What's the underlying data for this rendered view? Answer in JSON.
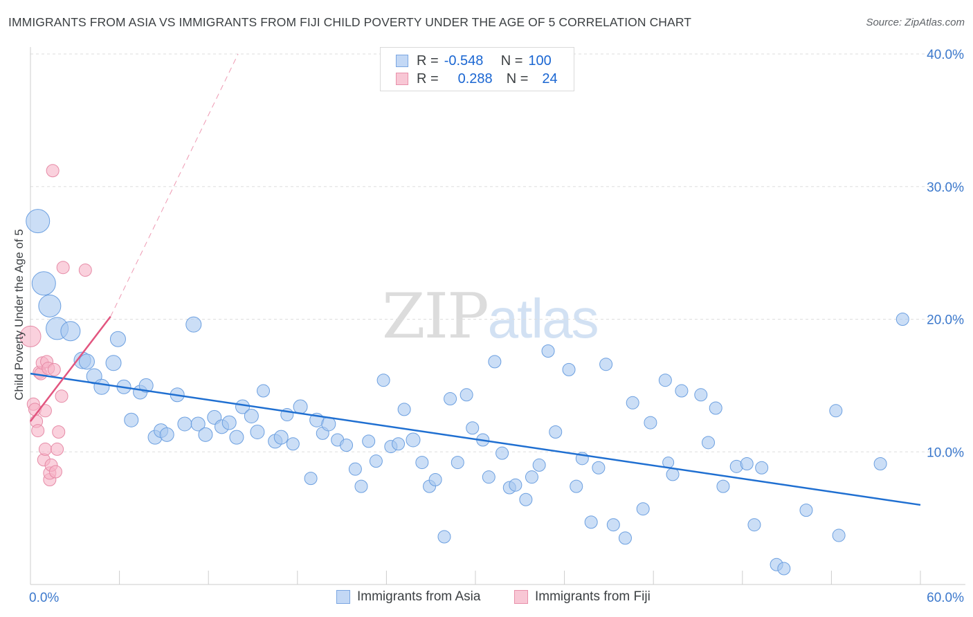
{
  "title": "IMMIGRANTS FROM ASIA VS IMMIGRANTS FROM FIJI CHILD POVERTY UNDER THE AGE OF 5 CORRELATION CHART",
  "source": "Source: ZipAtlas.com",
  "watermark": {
    "part1": "ZIP",
    "part2": "atlas"
  },
  "legend_top": {
    "rows": [
      {
        "r_label": "R =",
        "r_value": "-0.548",
        "n_label": "N =",
        "n_value": "100"
      },
      {
        "r_label": "R =",
        "r_value": "0.288",
        "n_label": "N =",
        "n_value": "24"
      }
    ]
  },
  "colors": {
    "asia_fill": "#a9c8f0",
    "asia_stroke": "#6b9fe0",
    "asia_line": "#1f6fd1",
    "fiji_fill": "#f6b3c7",
    "fiji_stroke": "#e68aa6",
    "fiji_line": "#e2557f",
    "tick_label": "#3b78cc",
    "grid": "#dddddd"
  },
  "chart_data": {
    "type": "scatter",
    "title": "IMMIGRANTS FROM ASIA VS IMMIGRANTS FROM FIJI CHILD POVERTY UNDER THE AGE OF 5 CORRELATION CHART",
    "xlabel": "",
    "ylabel": "Child Poverty Under the Age of 5",
    "xlim": [
      0,
      60
    ],
    "ylim": [
      0,
      40
    ],
    "x_tick_labels": [
      "0.0%",
      "60.0%"
    ],
    "y_ticks": [
      10,
      20,
      30,
      40
    ],
    "y_tick_labels": [
      "10.0%",
      "20.0%",
      "30.0%",
      "40.0%"
    ],
    "grid": true,
    "legend": "bottom",
    "series": [
      {
        "name": "Immigrants from Asia",
        "trend": {
          "x": [
            0,
            60
          ],
          "y": [
            15.9,
            6.0
          ]
        },
        "points": [
          {
            "x": 0.5,
            "y": 27.4,
            "s": 17
          },
          {
            "x": 0.9,
            "y": 22.7,
            "s": 17
          },
          {
            "x": 1.3,
            "y": 21.0,
            "s": 16
          },
          {
            "x": 1.8,
            "y": 19.3,
            "s": 16
          },
          {
            "x": 2.7,
            "y": 19.1,
            "s": 14
          },
          {
            "x": 3.5,
            "y": 16.9,
            "s": 12
          },
          {
            "x": 3.8,
            "y": 16.8,
            "s": 11
          },
          {
            "x": 4.3,
            "y": 15.7,
            "s": 11
          },
          {
            "x": 4.8,
            "y": 14.9,
            "s": 11
          },
          {
            "x": 5.6,
            "y": 16.7,
            "s": 11
          },
          {
            "x": 5.9,
            "y": 18.5,
            "s": 11
          },
          {
            "x": 6.3,
            "y": 14.9,
            "s": 10
          },
          {
            "x": 6.8,
            "y": 12.4,
            "s": 10
          },
          {
            "x": 7.4,
            "y": 14.5,
            "s": 10
          },
          {
            "x": 7.8,
            "y": 15.0,
            "s": 10
          },
          {
            "x": 8.4,
            "y": 11.1,
            "s": 10
          },
          {
            "x": 8.8,
            "y": 11.6,
            "s": 10
          },
          {
            "x": 9.2,
            "y": 11.3,
            "s": 10
          },
          {
            "x": 9.9,
            "y": 14.3,
            "s": 10
          },
          {
            "x": 10.4,
            "y": 12.1,
            "s": 10
          },
          {
            "x": 11.0,
            "y": 19.6,
            "s": 11
          },
          {
            "x": 11.3,
            "y": 12.1,
            "s": 10
          },
          {
            "x": 11.8,
            "y": 11.3,
            "s": 10
          },
          {
            "x": 12.4,
            "y": 12.6,
            "s": 10
          },
          {
            "x": 12.9,
            "y": 11.9,
            "s": 10
          },
          {
            "x": 13.4,
            "y": 12.2,
            "s": 10
          },
          {
            "x": 13.9,
            "y": 11.1,
            "s": 10
          },
          {
            "x": 14.3,
            "y": 13.4,
            "s": 10
          },
          {
            "x": 14.9,
            "y": 12.7,
            "s": 10
          },
          {
            "x": 15.3,
            "y": 11.5,
            "s": 10
          },
          {
            "x": 15.7,
            "y": 14.6,
            "s": 9
          },
          {
            "x": 16.5,
            "y": 10.8,
            "s": 10
          },
          {
            "x": 16.9,
            "y": 11.1,
            "s": 10
          },
          {
            "x": 17.3,
            "y": 12.8,
            "s": 9
          },
          {
            "x": 17.7,
            "y": 10.6,
            "s": 9
          },
          {
            "x": 18.2,
            "y": 13.4,
            "s": 10
          },
          {
            "x": 18.9,
            "y": 8.0,
            "s": 9
          },
          {
            "x": 19.3,
            "y": 12.4,
            "s": 10
          },
          {
            "x": 19.7,
            "y": 11.4,
            "s": 9
          },
          {
            "x": 20.1,
            "y": 12.1,
            "s": 10
          },
          {
            "x": 20.7,
            "y": 10.9,
            "s": 9
          },
          {
            "x": 21.3,
            "y": 10.5,
            "s": 9
          },
          {
            "x": 21.9,
            "y": 8.7,
            "s": 9
          },
          {
            "x": 22.3,
            "y": 7.4,
            "s": 9
          },
          {
            "x": 22.8,
            "y": 10.8,
            "s": 9
          },
          {
            "x": 23.3,
            "y": 9.3,
            "s": 9
          },
          {
            "x": 23.8,
            "y": 15.4,
            "s": 9
          },
          {
            "x": 24.3,
            "y": 10.4,
            "s": 9
          },
          {
            "x": 24.8,
            "y": 10.6,
            "s": 9
          },
          {
            "x": 25.2,
            "y": 13.2,
            "s": 9
          },
          {
            "x": 25.8,
            "y": 10.9,
            "s": 10
          },
          {
            "x": 26.4,
            "y": 9.2,
            "s": 9
          },
          {
            "x": 26.9,
            "y": 7.4,
            "s": 9
          },
          {
            "x": 27.3,
            "y": 7.9,
            "s": 9
          },
          {
            "x": 27.9,
            "y": 3.6,
            "s": 9
          },
          {
            "x": 28.3,
            "y": 14.0,
            "s": 9
          },
          {
            "x": 28.8,
            "y": 9.2,
            "s": 9
          },
          {
            "x": 29.4,
            "y": 14.3,
            "s": 9
          },
          {
            "x": 29.8,
            "y": 11.8,
            "s": 9
          },
          {
            "x": 30.5,
            "y": 10.9,
            "s": 9
          },
          {
            "x": 30.9,
            "y": 8.1,
            "s": 9
          },
          {
            "x": 31.3,
            "y": 16.8,
            "s": 9
          },
          {
            "x": 31.8,
            "y": 9.9,
            "s": 9
          },
          {
            "x": 32.3,
            "y": 7.3,
            "s": 9
          },
          {
            "x": 32.7,
            "y": 7.5,
            "s": 9
          },
          {
            "x": 33.4,
            "y": 6.4,
            "s": 9
          },
          {
            "x": 33.8,
            "y": 8.1,
            "s": 9
          },
          {
            "x": 34.3,
            "y": 9.0,
            "s": 9
          },
          {
            "x": 34.9,
            "y": 17.6,
            "s": 9
          },
          {
            "x": 35.4,
            "y": 11.5,
            "s": 9
          },
          {
            "x": 36.3,
            "y": 16.2,
            "s": 9
          },
          {
            "x": 36.8,
            "y": 7.4,
            "s": 9
          },
          {
            "x": 37.2,
            "y": 9.5,
            "s": 9
          },
          {
            "x": 37.8,
            "y": 4.7,
            "s": 9
          },
          {
            "x": 38.3,
            "y": 8.8,
            "s": 9
          },
          {
            "x": 38.8,
            "y": 16.6,
            "s": 9
          },
          {
            "x": 39.3,
            "y": 4.5,
            "s": 9
          },
          {
            "x": 40.1,
            "y": 3.5,
            "s": 9
          },
          {
            "x": 40.6,
            "y": 13.7,
            "s": 9
          },
          {
            "x": 41.3,
            "y": 5.7,
            "s": 9
          },
          {
            "x": 41.8,
            "y": 12.2,
            "s": 9
          },
          {
            "x": 42.8,
            "y": 15.4,
            "s": 9
          },
          {
            "x": 43.3,
            "y": 8.3,
            "s": 9
          },
          {
            "x": 43.9,
            "y": 14.6,
            "s": 9
          },
          {
            "x": 45.2,
            "y": 14.3,
            "s": 9
          },
          {
            "x": 45.7,
            "y": 10.7,
            "s": 9
          },
          {
            "x": 46.2,
            "y": 13.3,
            "s": 9
          },
          {
            "x": 46.7,
            "y": 7.4,
            "s": 9
          },
          {
            "x": 47.6,
            "y": 8.9,
            "s": 9
          },
          {
            "x": 48.3,
            "y": 9.1,
            "s": 9
          },
          {
            "x": 48.8,
            "y": 4.5,
            "s": 9
          },
          {
            "x": 49.3,
            "y": 8.8,
            "s": 9
          },
          {
            "x": 50.3,
            "y": 1.5,
            "s": 9
          },
          {
            "x": 50.8,
            "y": 1.2,
            "s": 9
          },
          {
            "x": 52.3,
            "y": 5.6,
            "s": 9
          },
          {
            "x": 54.3,
            "y": 13.1,
            "s": 9
          },
          {
            "x": 54.5,
            "y": 3.7,
            "s": 9
          },
          {
            "x": 57.3,
            "y": 9.1,
            "s": 9
          },
          {
            "x": 58.8,
            "y": 20.0,
            "s": 9
          },
          {
            "x": 43.0,
            "y": 9.2,
            "s": 8
          }
        ]
      },
      {
        "name": "Immigrants from Fiji",
        "trend": {
          "x": [
            0,
            5.4
          ],
          "y": [
            12.3,
            20.2
          ]
        },
        "trend_extension": {
          "x": [
            5.4,
            14.0
          ],
          "y": [
            20.2,
            40.0
          ]
        },
        "points": [
          {
            "x": 0.0,
            "y": 18.7,
            "s": 15
          },
          {
            "x": 0.2,
            "y": 13.6,
            "s": 9
          },
          {
            "x": 0.3,
            "y": 13.2,
            "s": 9
          },
          {
            "x": 0.4,
            "y": 12.3,
            "s": 9
          },
          {
            "x": 0.5,
            "y": 11.6,
            "s": 9
          },
          {
            "x": 0.6,
            "y": 16.0,
            "s": 9
          },
          {
            "x": 0.7,
            "y": 15.9,
            "s": 9
          },
          {
            "x": 0.8,
            "y": 16.7,
            "s": 9
          },
          {
            "x": 0.9,
            "y": 9.4,
            "s": 9
          },
          {
            "x": 1.0,
            "y": 10.2,
            "s": 9
          },
          {
            "x": 1.0,
            "y": 13.1,
            "s": 9
          },
          {
            "x": 1.1,
            "y": 16.8,
            "s": 9
          },
          {
            "x": 1.2,
            "y": 16.3,
            "s": 9
          },
          {
            "x": 1.3,
            "y": 7.9,
            "s": 9
          },
          {
            "x": 1.3,
            "y": 8.4,
            "s": 9
          },
          {
            "x": 1.4,
            "y": 9.0,
            "s": 9
          },
          {
            "x": 1.5,
            "y": 31.2,
            "s": 9
          },
          {
            "x": 1.6,
            "y": 16.2,
            "s": 9
          },
          {
            "x": 1.7,
            "y": 8.5,
            "s": 9
          },
          {
            "x": 1.8,
            "y": 10.2,
            "s": 9
          },
          {
            "x": 1.9,
            "y": 11.5,
            "s": 9
          },
          {
            "x": 2.1,
            "y": 14.2,
            "s": 9
          },
          {
            "x": 2.2,
            "y": 23.9,
            "s": 9
          },
          {
            "x": 3.7,
            "y": 23.7,
            "s": 9
          }
        ]
      }
    ]
  },
  "legend_bottom": {
    "items": [
      "Immigrants from Asia",
      "Immigrants from Fiji"
    ]
  }
}
